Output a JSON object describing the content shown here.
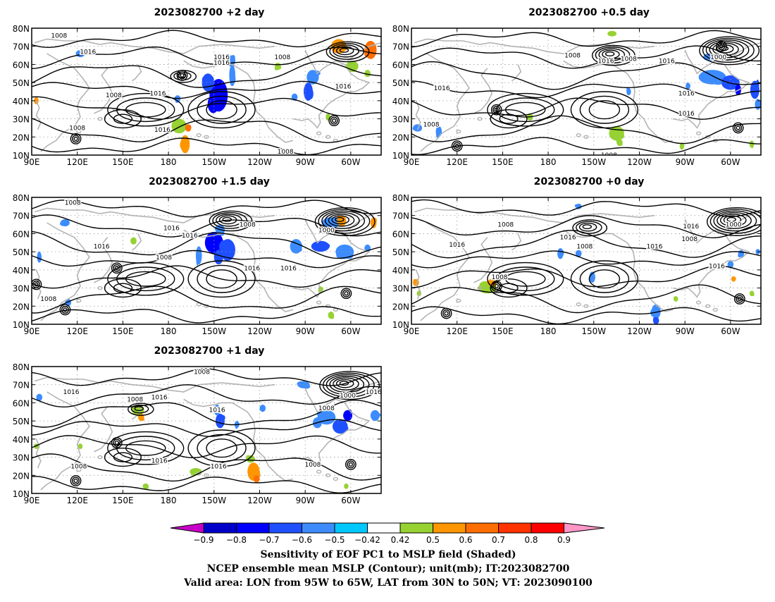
{
  "colors": {
    "contour": "#000000",
    "coast": "#b4b4b4",
    "grid": "#9a9a9a",
    "levels": [
      "#c800c8",
      "#0000c8",
      "#0000ff",
      "#1e50ff",
      "#3c8cff",
      "#00c8ff",
      "#ffffff",
      "#96d232",
      "#ff9600",
      "#ff6e00",
      "#ff3200",
      "#ff0000",
      "#ff96c8"
    ]
  },
  "axes": {
    "lon_labels": [
      "90E",
      "120E",
      "150E",
      "180",
      "150W",
      "120W",
      "90W",
      "60W"
    ],
    "lat_labels": [
      "80N",
      "70N",
      "60N",
      "50N",
      "40N",
      "30N",
      "20N",
      "10N"
    ],
    "lon_range": [
      90,
      320
    ],
    "lat_range": [
      10,
      80
    ]
  },
  "panels": [
    {
      "id": "p2",
      "title": "2023082700 +2 day",
      "contour_labels": [
        {
          "text": "1008",
          "lon": 108,
          "lat": 76
        },
        {
          "text": "1016",
          "lon": 127,
          "lat": 67
        },
        {
          "text": "1016",
          "lon": 215,
          "lat": 64
        },
        {
          "text": "1016",
          "lon": 215,
          "lat": 61
        },
        {
          "text": "1008",
          "lon": 255,
          "lat": 64
        },
        {
          "text": "1008",
          "lon": 144,
          "lat": 43
        },
        {
          "text": "1016",
          "lon": 173,
          "lat": 44
        },
        {
          "text": "1008",
          "lon": 120,
          "lat": 25
        },
        {
          "text": "1016",
          "lon": 176,
          "lat": 24
        },
        {
          "text": "1016",
          "lon": 295,
          "lat": 48
        },
        {
          "text": "1008",
          "lon": 257,
          "lat": 12
        }
      ],
      "blobs": [
        {
          "lon": 213,
          "lat": 43,
          "rx": 6,
          "ry": 9,
          "v": -0.7
        },
        {
          "lon": 206,
          "lat": 50,
          "rx": 4,
          "ry": 5,
          "v": -0.6
        },
        {
          "lon": 222,
          "lat": 54,
          "rx": 2,
          "ry": 6,
          "v": -0.5
        },
        {
          "lon": 221,
          "lat": 62,
          "rx": 3,
          "ry": 3,
          "v": -0.5
        },
        {
          "lon": 275,
          "lat": 53,
          "rx": 4,
          "ry": 4,
          "v": -0.5
        },
        {
          "lon": 272,
          "lat": 45,
          "rx": 3,
          "ry": 5,
          "v": -0.6
        },
        {
          "lon": 263,
          "lat": 42,
          "rx": 2,
          "ry": 2,
          "v": -0.5
        },
        {
          "lon": 292,
          "lat": 70,
          "rx": 5,
          "ry": 4,
          "v": 0.6
        },
        {
          "lon": 313,
          "lat": 68,
          "rx": 4,
          "ry": 5,
          "v": 0.7
        },
        {
          "lon": 301,
          "lat": 59,
          "rx": 4,
          "ry": 3,
          "v": 0.5
        },
        {
          "lon": 311,
          "lat": 55,
          "rx": 2,
          "ry": 2,
          "v": 0.5
        },
        {
          "lon": 187,
          "lat": 26,
          "rx": 5,
          "ry": 4,
          "v": 0.5
        },
        {
          "lon": 191,
          "lat": 16,
          "rx": 3,
          "ry": 5,
          "v": 0.6
        },
        {
          "lon": 193,
          "lat": 25,
          "rx": 2,
          "ry": 2,
          "v": 0.7
        },
        {
          "lon": 186,
          "lat": 41,
          "rx": 2,
          "ry": 2,
          "v": -0.5
        },
        {
          "lon": 122,
          "lat": 66,
          "rx": 3,
          "ry": 2,
          "v": -0.5
        },
        {
          "lon": 252,
          "lat": 59,
          "rx": 2,
          "ry": 2,
          "v": 0.5
        },
        {
          "lon": 93,
          "lat": 40,
          "rx": 1.5,
          "ry": 2,
          "v": 0.6
        },
        {
          "lon": 285,
          "lat": 31,
          "rx": 1.5,
          "ry": 2,
          "v": 0.5
        }
      ],
      "centers": [
        {
          "lon": 119,
          "lat": 19
        },
        {
          "lon": 289,
          "lat": 29
        },
        {
          "lon": 189,
          "lat": 54
        }
      ]
    },
    {
      "id": "p05",
      "title": "2023082700 +0.5 day",
      "contour_labels": [
        {
          "text": "1008",
          "lon": 196,
          "lat": 65
        },
        {
          "text": "1016",
          "lon": 218,
          "lat": 62
        },
        {
          "text": "1008",
          "lon": 233,
          "lat": 63
        },
        {
          "text": "1016",
          "lon": 258,
          "lat": 62
        },
        {
          "text": "1000",
          "lon": 292,
          "lat": 64
        },
        {
          "text": "1016",
          "lon": 110,
          "lat": 47
        },
        {
          "text": "1008",
          "lon": 103,
          "lat": 27
        },
        {
          "text": "1016",
          "lon": 271,
          "lat": 44
        },
        {
          "text": "1016",
          "lon": 271,
          "lat": 33
        },
        {
          "text": "1008",
          "lon": 220,
          "lat": 10
        }
      ],
      "blobs": [
        {
          "lon": 288,
          "lat": 53,
          "rx": 9,
          "ry": 4,
          "v": -0.5
        },
        {
          "lon": 300,
          "lat": 50,
          "rx": 6,
          "ry": 4,
          "v": -0.6
        },
        {
          "lon": 305,
          "lat": 46,
          "rx": 2,
          "ry": 3,
          "v": -0.7
        },
        {
          "lon": 316,
          "lat": 46,
          "rx": 3,
          "ry": 5,
          "v": -0.6
        },
        {
          "lon": 318,
          "lat": 38,
          "rx": 2,
          "ry": 3,
          "v": -0.5
        },
        {
          "lon": 286,
          "lat": 64,
          "rx": 4,
          "ry": 2,
          "v": -0.5
        },
        {
          "lon": 272,
          "lat": 48,
          "rx": 1.5,
          "ry": 2,
          "v": -0.5
        },
        {
          "lon": 225,
          "lat": 22,
          "rx": 5,
          "ry": 4,
          "v": 0.5
        },
        {
          "lon": 227,
          "lat": 17,
          "rx": 2,
          "ry": 2,
          "v": 0.5
        },
        {
          "lon": 108,
          "lat": 23,
          "rx": 2,
          "ry": 3,
          "v": -0.5
        },
        {
          "lon": 94,
          "lat": 25,
          "rx": 3,
          "ry": 2,
          "v": -0.5
        },
        {
          "lon": 168,
          "lat": 31,
          "rx": 2,
          "ry": 2,
          "v": 0.5
        },
        {
          "lon": 233,
          "lat": 45,
          "rx": 1.5,
          "ry": 2,
          "v": -0.5
        },
        {
          "lon": 222,
          "lat": 77,
          "rx": 3,
          "ry": 1.5,
          "v": 0.5
        },
        {
          "lon": 314,
          "lat": 16,
          "rx": 1.5,
          "ry": 2,
          "v": 0.5
        },
        {
          "lon": 268,
          "lat": 15,
          "rx": 1.5,
          "ry": 2,
          "v": 0.5
        }
      ],
      "centers": [
        {
          "lon": 146,
          "lat": 35
        },
        {
          "lon": 294,
          "lat": 70
        },
        {
          "lon": 305,
          "lat": 25
        },
        {
          "lon": 120,
          "lat": 15
        }
      ]
    },
    {
      "id": "p15",
      "title": "2023082700 +1.5 day",
      "contour_labels": [
        {
          "text": "1008",
          "lon": 117,
          "lat": 77
        },
        {
          "text": "1016",
          "lon": 182,
          "lat": 63
        },
        {
          "text": "1016",
          "lon": 194,
          "lat": 59
        },
        {
          "text": "1008",
          "lon": 232,
          "lat": 65
        },
        {
          "text": "1000",
          "lon": 284,
          "lat": 62
        },
        {
          "text": "1016",
          "lon": 136,
          "lat": 53
        },
        {
          "text": "1008",
          "lon": 177,
          "lat": 47
        },
        {
          "text": "1016",
          "lon": 235,
          "lat": 41
        },
        {
          "text": "1016",
          "lon": 259,
          "lat": 41
        },
        {
          "text": "1008",
          "lon": 101,
          "lat": 24
        }
      ],
      "blobs": [
        {
          "lon": 210,
          "lat": 55,
          "rx": 6,
          "ry": 6,
          "v": -0.7
        },
        {
          "lon": 219,
          "lat": 51,
          "rx": 5,
          "ry": 6,
          "v": -0.6
        },
        {
          "lon": 200,
          "lat": 48,
          "rx": 2,
          "ry": 5,
          "v": -0.5
        },
        {
          "lon": 213,
          "lat": 47,
          "rx": 3,
          "ry": 4,
          "v": -0.6
        },
        {
          "lon": 214,
          "lat": 62,
          "rx": 3,
          "ry": 3,
          "v": -0.5
        },
        {
          "lon": 264,
          "lat": 53,
          "rx": 4,
          "ry": 4,
          "v": -0.5
        },
        {
          "lon": 280,
          "lat": 53,
          "rx": 6,
          "ry": 3,
          "v": -0.6
        },
        {
          "lon": 296,
          "lat": 50,
          "rx": 6,
          "ry": 4,
          "v": -0.5
        },
        {
          "lon": 287,
          "lat": 66,
          "rx": 6,
          "ry": 3,
          "v": -0.5
        },
        {
          "lon": 311,
          "lat": 52,
          "rx": 2,
          "ry": 2,
          "v": -0.5
        },
        {
          "lon": 294,
          "lat": 67,
          "rx": 3,
          "ry": 3,
          "v": 0.6
        },
        {
          "lon": 315,
          "lat": 66,
          "rx": 2,
          "ry": 3,
          "v": 0.6
        },
        {
          "lon": 112,
          "lat": 66,
          "rx": 3,
          "ry": 2,
          "v": -0.5
        },
        {
          "lon": 114,
          "lat": 22,
          "rx": 2,
          "ry": 2,
          "v": -0.5
        },
        {
          "lon": 95,
          "lat": 47,
          "rx": 1.5,
          "ry": 3,
          "v": -0.5
        },
        {
          "lon": 157,
          "lat": 56,
          "rx": 2,
          "ry": 2,
          "v": 0.5
        },
        {
          "lon": 287,
          "lat": 15,
          "rx": 2,
          "ry": 2,
          "v": 0.5
        },
        {
          "lon": 280,
          "lat": 29,
          "rx": 1.5,
          "ry": 2,
          "v": 0.5
        }
      ],
      "centers": [
        {
          "lon": 112,
          "lat": 18
        },
        {
          "lon": 146,
          "lat": 41
        },
        {
          "lon": 297,
          "lat": 27
        },
        {
          "lon": 93,
          "lat": 32
        }
      ]
    },
    {
      "id": "p0",
      "title": "2023082700 +0 day",
      "contour_labels": [
        {
          "text": "1008",
          "lon": 152,
          "lat": 65
        },
        {
          "text": "1016",
          "lon": 193,
          "lat": 58
        },
        {
          "text": "1008",
          "lon": 204,
          "lat": 53
        },
        {
          "text": "1016",
          "lon": 120,
          "lat": 54
        },
        {
          "text": "1016",
          "lon": 250,
          "lat": 53
        },
        {
          "text": "1016",
          "lon": 274,
          "lat": 64
        },
        {
          "text": "1008",
          "lon": 273,
          "lat": 57
        },
        {
          "text": "1000",
          "lon": 302,
          "lat": 65
        },
        {
          "text": "1016",
          "lon": 291,
          "lat": 42
        },
        {
          "text": "1008",
          "lon": 148,
          "lat": 36
        }
      ],
      "blobs": [
        {
          "lon": 188,
          "lat": 49,
          "rx": 2,
          "ry": 3,
          "v": -0.5
        },
        {
          "lon": 200,
          "lat": 49,
          "rx": 2,
          "ry": 2,
          "v": -0.5
        },
        {
          "lon": 209,
          "lat": 36,
          "rx": 2,
          "ry": 3,
          "v": -0.5
        },
        {
          "lon": 251,
          "lat": 17,
          "rx": 3,
          "ry": 4,
          "v": -0.5
        },
        {
          "lon": 251,
          "lat": 12,
          "rx": 2,
          "ry": 2,
          "v": -0.6
        },
        {
          "lon": 307,
          "lat": 49,
          "rx": 2,
          "ry": 2,
          "v": -0.5
        },
        {
          "lon": 300,
          "lat": 43,
          "rx": 2,
          "ry": 2,
          "v": -0.5
        },
        {
          "lon": 140,
          "lat": 30,
          "rx": 6,
          "ry": 3,
          "v": 0.5
        },
        {
          "lon": 143,
          "lat": 33,
          "rx": 3,
          "ry": 2,
          "v": 0.6
        },
        {
          "lon": 93,
          "lat": 33,
          "rx": 2,
          "ry": 2,
          "v": 0.6
        },
        {
          "lon": 95,
          "lat": 27,
          "rx": 1.5,
          "ry": 1.5,
          "v": 0.5
        },
        {
          "lon": 264,
          "lat": 24,
          "rx": 1.5,
          "ry": 1.5,
          "v": 0.5
        },
        {
          "lon": 314,
          "lat": 27,
          "rx": 1.5,
          "ry": 1.5,
          "v": 0.5
        },
        {
          "lon": 200,
          "lat": 75,
          "rx": 2,
          "ry": 1.5,
          "v": -0.5
        },
        {
          "lon": 318,
          "lat": 50,
          "rx": 1.5,
          "ry": 1.5,
          "v": -0.5
        },
        {
          "lon": 302,
          "lat": 35,
          "rx": 1.5,
          "ry": 1.5,
          "v": 0.6
        }
      ],
      "centers": [
        {
          "lon": 113,
          "lat": 16
        },
        {
          "lon": 146,
          "lat": 31
        },
        {
          "lon": 306,
          "lat": 24
        }
      ]
    },
    {
      "id": "p1",
      "title": "2023082700 +1 day",
      "contour_labels": [
        {
          "text": "1008",
          "lon": 202,
          "lat": 77
        },
        {
          "text": "1016",
          "lon": 116,
          "lat": 66
        },
        {
          "text": "1008",
          "lon": 158,
          "lat": 62
        },
        {
          "text": "1016",
          "lon": 174,
          "lat": 63
        },
        {
          "text": "1016",
          "lon": 212,
          "lat": 56
        },
        {
          "text": "1000",
          "lon": 298,
          "lat": 64
        },
        {
          "text": "1016",
          "lon": 315,
          "lat": 66
        },
        {
          "text": "1008",
          "lon": 284,
          "lat": 57
        },
        {
          "text": "1016",
          "lon": 174,
          "lat": 28
        },
        {
          "text": "1016",
          "lon": 213,
          "lat": 25
        },
        {
          "text": "1008",
          "lon": 121,
          "lat": 25
        },
        {
          "text": "1008",
          "lon": 275,
          "lat": 26
        }
      ],
      "blobs": [
        {
          "lon": 284,
          "lat": 52,
          "rx": 6,
          "ry": 4,
          "v": -0.5
        },
        {
          "lon": 293,
          "lat": 47,
          "rx": 5,
          "ry": 4,
          "v": -0.6
        },
        {
          "lon": 298,
          "lat": 53,
          "rx": 3,
          "ry": 3,
          "v": -0.7
        },
        {
          "lon": 278,
          "lat": 49,
          "rx": 3,
          "ry": 3,
          "v": -0.5
        },
        {
          "lon": 269,
          "lat": 70,
          "rx": 4,
          "ry": 2,
          "v": -0.5
        },
        {
          "lon": 214,
          "lat": 50,
          "rx": 3,
          "ry": 4,
          "v": -0.6
        },
        {
          "lon": 212,
          "lat": 56,
          "rx": 2,
          "ry": 3,
          "v": -0.5
        },
        {
          "lon": 242,
          "lat": 57,
          "rx": 2,
          "ry": 2,
          "v": -0.5
        },
        {
          "lon": 225,
          "lat": 48,
          "rx": 1.5,
          "ry": 2,
          "v": -0.5
        },
        {
          "lon": 316,
          "lat": 53,
          "rx": 3,
          "ry": 3,
          "v": -0.5
        },
        {
          "lon": 236,
          "lat": 22,
          "rx": 4,
          "ry": 5,
          "v": 0.6
        },
        {
          "lon": 238,
          "lat": 18,
          "rx": 2,
          "ry": 2,
          "v": 0.7
        },
        {
          "lon": 234,
          "lat": 29,
          "rx": 3,
          "ry": 2,
          "v": 0.5
        },
        {
          "lon": 198,
          "lat": 22,
          "rx": 4,
          "ry": 2,
          "v": 0.5
        },
        {
          "lon": 160,
          "lat": 56,
          "rx": 4,
          "ry": 3,
          "v": 0.5
        },
        {
          "lon": 162,
          "lat": 52,
          "rx": 2,
          "ry": 2,
          "v": 0.6
        },
        {
          "lon": 93,
          "lat": 36,
          "rx": 1.5,
          "ry": 1.5,
          "v": 0.5
        },
        {
          "lon": 122,
          "lat": 36,
          "rx": 1.5,
          "ry": 1.5,
          "v": 0.5
        },
        {
          "lon": 95,
          "lat": 63,
          "rx": 2,
          "ry": 2,
          "v": -0.5
        },
        {
          "lon": 165,
          "lat": 14,
          "rx": 2,
          "ry": 1.5,
          "v": 0.5
        },
        {
          "lon": 297,
          "lat": 14,
          "rx": 1.5,
          "ry": 1.5,
          "v": 0.5
        }
      ],
      "centers": [
        {
          "lon": 146,
          "lat": 38
        },
        {
          "lon": 119,
          "lat": 17
        },
        {
          "lon": 300,
          "lat": 26
        }
      ]
    }
  ],
  "colorbar": {
    "labels": [
      "−0.9",
      "−0.8",
      "−0.7",
      "−0.6",
      "−0.5",
      "−0.42",
      "0.42",
      "0.5",
      "0.6",
      "0.7",
      "0.8",
      "0.9"
    ]
  },
  "caption": {
    "line1": "Sensitivity of EOF PC1 to MSLP field (Shaded)",
    "line2": "NCEP ensemble mean MSLP (Contour); unit(mb); IT:2023082700",
    "line3": "Valid area: LON from 95W to 65W, LAT from 30N to 50N; VT: 2023090100"
  }
}
